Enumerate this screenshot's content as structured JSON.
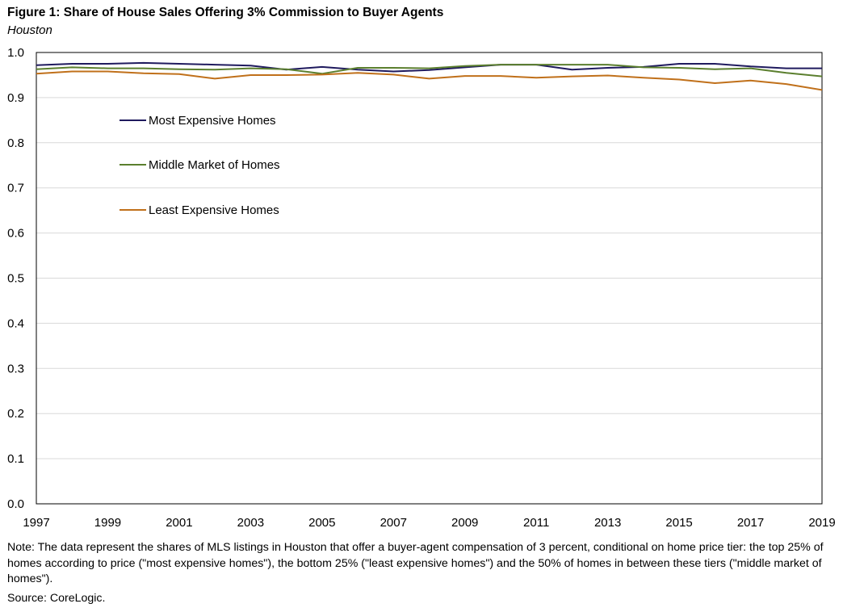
{
  "chart_data": {
    "type": "line",
    "title": "Figure 1: Share of House Sales Offering 3% Commission to Buyer Agents",
    "subtitle": "Houston",
    "xlabel": "",
    "ylabel": "",
    "ylim": [
      0,
      1.0
    ],
    "grid": true,
    "x": [
      1997,
      1998,
      1999,
      2000,
      2001,
      2002,
      2003,
      2004,
      2005,
      2006,
      2007,
      2008,
      2009,
      2010,
      2011,
      2012,
      2013,
      2014,
      2015,
      2016,
      2017,
      2018,
      2019
    ],
    "x_tick_labels": [
      "1997",
      "1999",
      "2001",
      "2003",
      "2005",
      "2007",
      "2009",
      "2011",
      "2013",
      "2015",
      "2017",
      "2019"
    ],
    "y_tick_labels": [
      "0.0",
      "0.1",
      "0.2",
      "0.3",
      "0.4",
      "0.5",
      "0.6",
      "0.7",
      "0.8",
      "0.9",
      "1.0"
    ],
    "legend_position": "upper-left inside",
    "series": [
      {
        "name": "Most Expensive Homes",
        "color": "#1f1a5e",
        "values": [
          0.972,
          0.975,
          0.975,
          0.977,
          0.975,
          0.973,
          0.971,
          0.962,
          0.968,
          0.962,
          0.958,
          0.961,
          0.967,
          0.973,
          0.973,
          0.962,
          0.966,
          0.968,
          0.975,
          0.975,
          0.969,
          0.965,
          0.965
        ]
      },
      {
        "name": "Middle Market of Homes",
        "color": "#5b7f2e",
        "values": [
          0.963,
          0.967,
          0.965,
          0.965,
          0.963,
          0.962,
          0.965,
          0.963,
          0.953,
          0.966,
          0.966,
          0.965,
          0.97,
          0.973,
          0.973,
          0.973,
          0.973,
          0.967,
          0.966,
          0.963,
          0.965,
          0.955,
          0.947
        ]
      },
      {
        "name": "Least Expensive Homes",
        "color": "#c0701a",
        "values": [
          0.953,
          0.958,
          0.958,
          0.954,
          0.952,
          0.942,
          0.95,
          0.95,
          0.951,
          0.955,
          0.951,
          0.942,
          0.948,
          0.948,
          0.944,
          0.947,
          0.949,
          0.944,
          0.94,
          0.932,
          0.938,
          0.93,
          0.917
        ]
      }
    ]
  },
  "note": "Note: The data represent the shares of MLS listings in Houston that offer a buyer-agent compensation of 3 percent, conditional on home price tier: the top 25% of homes according to price (\"most expensive homes\"), the bottom 25% (\"least expensive homes\") and the 50% of homes in between these tiers (\"middle market of homes\").",
  "source": "Source: CoreLogic."
}
